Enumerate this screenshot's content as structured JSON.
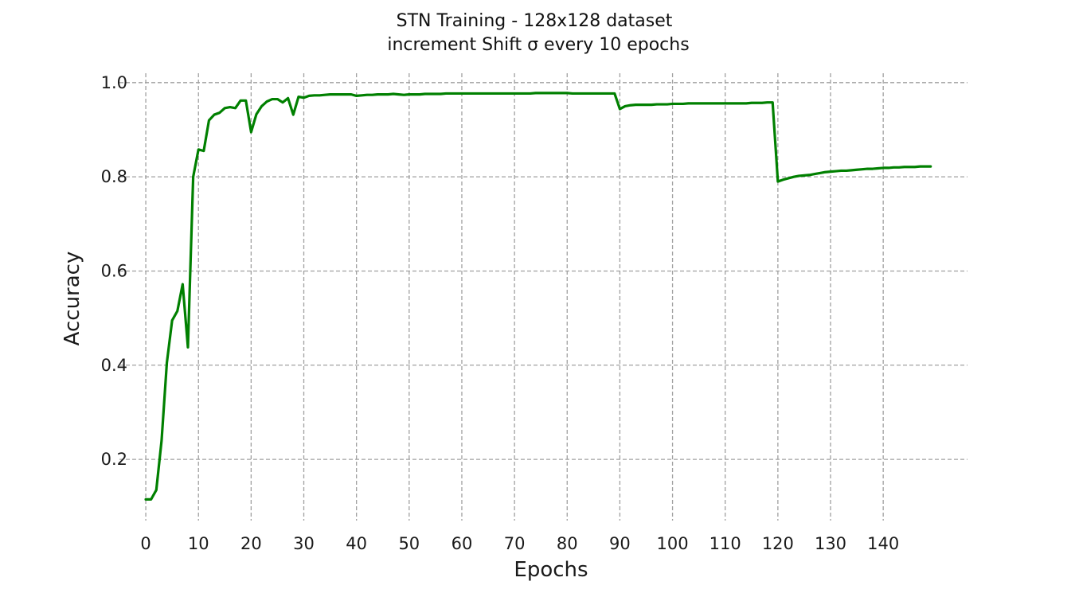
{
  "chart_data": {
    "type": "line",
    "title": "STN Training - 128x128 dataset",
    "subtitle": "increment Shift σ every 10 epochs",
    "xlabel": "Epochs",
    "ylabel": "Accuracy",
    "xlim": [
      -5,
      156
    ],
    "ylim": [
      0.07,
      1.02
    ],
    "x_ticks": [
      0,
      10,
      20,
      30,
      40,
      50,
      60,
      70,
      80,
      90,
      100,
      110,
      120,
      130,
      140
    ],
    "y_ticks": [
      0.2,
      0.4,
      0.6,
      0.8,
      1.0
    ],
    "x_tick_labels": [
      "0",
      "10",
      "20",
      "30",
      "40",
      "50",
      "60",
      "70",
      "80",
      "90",
      "100",
      "110",
      "120",
      "130",
      "140"
    ],
    "y_tick_labels": [
      "0.2",
      "0.4",
      "0.6",
      "0.8",
      "1.0"
    ],
    "grid": true,
    "legend": false,
    "line_color": "#008000",
    "grid_color": "#a0a0a0",
    "series": [
      {
        "x": [
          0,
          1,
          2,
          3,
          4,
          5,
          6,
          7,
          8,
          9,
          10,
          11,
          12,
          13,
          14,
          15,
          16,
          17,
          18,
          19,
          20,
          21,
          22,
          23,
          24,
          25,
          26,
          27,
          28,
          29,
          30,
          31,
          32,
          33,
          34,
          35,
          36,
          37,
          38,
          39,
          40,
          41,
          42,
          43,
          44,
          45,
          46,
          47,
          48,
          49,
          50,
          51,
          52,
          53,
          54,
          55,
          56,
          57,
          58,
          59,
          60,
          61,
          62,
          63,
          64,
          65,
          66,
          67,
          68,
          69,
          70,
          71,
          72,
          73,
          74,
          75,
          76,
          77,
          78,
          79,
          80,
          81,
          82,
          83,
          84,
          85,
          86,
          87,
          88,
          89,
          90,
          91,
          92,
          93,
          94,
          95,
          96,
          97,
          98,
          99,
          100,
          101,
          102,
          103,
          104,
          105,
          106,
          107,
          108,
          109,
          110,
          111,
          112,
          113,
          114,
          115,
          116,
          117,
          118,
          119,
          120,
          121,
          122,
          123,
          124,
          125,
          126,
          127,
          128,
          129,
          130,
          131,
          132,
          133,
          134,
          135,
          136,
          137,
          138,
          139,
          140,
          141,
          142,
          143,
          144,
          145,
          146,
          147,
          148,
          149
        ],
        "y": [
          0.115,
          0.115,
          0.135,
          0.24,
          0.405,
          0.495,
          0.515,
          0.572,
          0.438,
          0.8,
          0.858,
          0.855,
          0.92,
          0.932,
          0.936,
          0.946,
          0.948,
          0.946,
          0.962,
          0.962,
          0.895,
          0.933,
          0.95,
          0.96,
          0.965,
          0.965,
          0.958,
          0.967,
          0.932,
          0.97,
          0.968,
          0.972,
          0.973,
          0.973,
          0.974,
          0.975,
          0.975,
          0.975,
          0.975,
          0.975,
          0.972,
          0.973,
          0.974,
          0.974,
          0.975,
          0.975,
          0.975,
          0.976,
          0.975,
          0.974,
          0.975,
          0.975,
          0.975,
          0.976,
          0.976,
          0.976,
          0.976,
          0.977,
          0.977,
          0.977,
          0.977,
          0.977,
          0.977,
          0.977,
          0.977,
          0.977,
          0.977,
          0.977,
          0.977,
          0.977,
          0.977,
          0.977,
          0.977,
          0.977,
          0.978,
          0.978,
          0.978,
          0.978,
          0.978,
          0.978,
          0.978,
          0.977,
          0.977,
          0.977,
          0.977,
          0.977,
          0.977,
          0.977,
          0.977,
          0.977,
          0.944,
          0.95,
          0.952,
          0.953,
          0.953,
          0.953,
          0.953,
          0.954,
          0.954,
          0.954,
          0.955,
          0.955,
          0.955,
          0.956,
          0.956,
          0.956,
          0.956,
          0.956,
          0.956,
          0.956,
          0.956,
          0.956,
          0.956,
          0.956,
          0.956,
          0.957,
          0.957,
          0.957,
          0.958,
          0.958,
          0.79,
          0.794,
          0.797,
          0.8,
          0.802,
          0.803,
          0.804,
          0.806,
          0.808,
          0.81,
          0.811,
          0.812,
          0.813,
          0.813,
          0.814,
          0.815,
          0.816,
          0.817,
          0.817,
          0.818,
          0.819,
          0.819,
          0.82,
          0.82,
          0.821,
          0.821,
          0.821,
          0.822,
          0.822,
          0.822
        ]
      }
    ]
  }
}
